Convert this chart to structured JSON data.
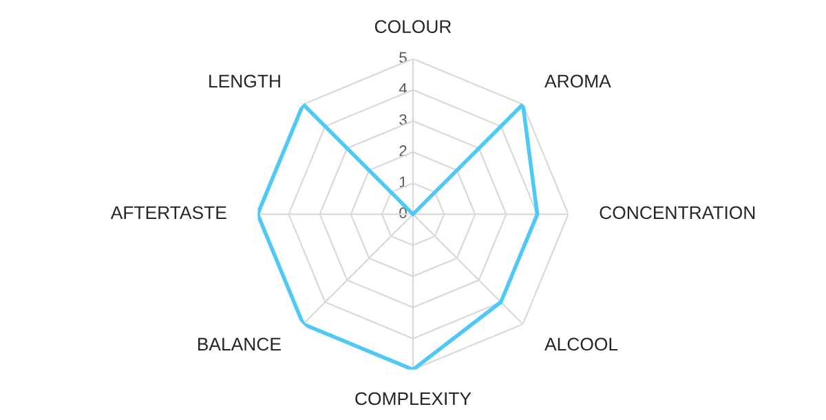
{
  "chart_data": {
    "type": "radar",
    "categories": [
      "COLOUR",
      "AROMA",
      "CONCENTRATION",
      "ALCOOL",
      "COMPLEXITY",
      "BALANCE",
      "AFTERTASTE",
      "LENGTH"
    ],
    "series": [
      {
        "color": "#4fc8f5",
        "values": [
          0,
          5,
          4,
          4,
          5,
          5,
          5,
          5
        ]
      }
    ],
    "ylim": [
      0,
      5
    ],
    "yticks": [
      0,
      1,
      2,
      3,
      4,
      5
    ],
    "grid": true,
    "marker": "none",
    "line_style": "solid",
    "legend": false
  }
}
